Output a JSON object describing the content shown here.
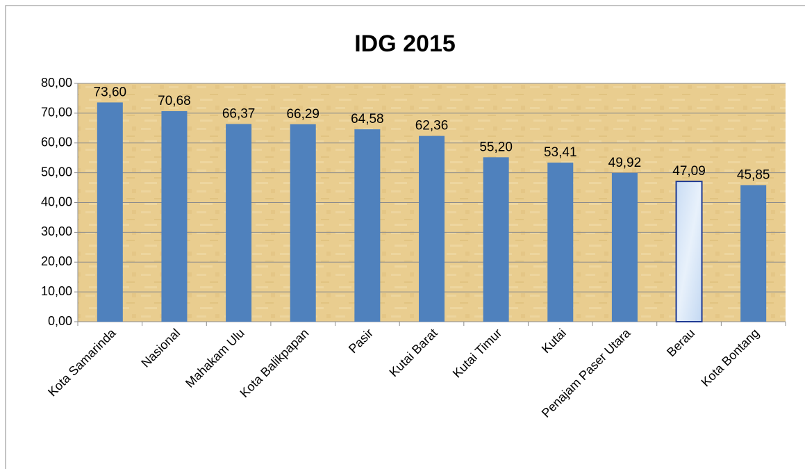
{
  "chart_data": {
    "type": "bar",
    "title": "IDG 2015",
    "categories": [
      "Kota Samarinda",
      "Nasional",
      "Mahakam Ulu",
      "Kota Balikpapan",
      "Pasir",
      "Kutai Barat",
      "Kutai Timur",
      "Kutai",
      "Penajam Paser Utara",
      "Berau",
      "Kota Bontang"
    ],
    "values": [
      73.6,
      70.68,
      66.37,
      66.29,
      64.58,
      62.36,
      55.2,
      53.41,
      49.92,
      47.09,
      45.85
    ],
    "value_labels": [
      "73,60",
      "70,68",
      "66,37",
      "66,29",
      "64,58",
      "62,36",
      "55,20",
      "53,41",
      "49,92",
      "47,09",
      "45,85"
    ],
    "colors": [
      "#4f81bd",
      "#4f81bd",
      "#4f81bd",
      "#4f81bd",
      "#4f81bd",
      "#4f81bd",
      "#4f81bd",
      "#4f81bd",
      "#4f81bd",
      "#dce9f8",
      "#4f81bd"
    ],
    "ylim": [
      0,
      80
    ],
    "yticks": [
      {
        "value": 0,
        "label": "0,00"
      },
      {
        "value": 10,
        "label": "10,00"
      },
      {
        "value": 20,
        "label": "20,00"
      },
      {
        "value": 30,
        "label": "30,00"
      },
      {
        "value": 40,
        "label": "40,00"
      },
      {
        "value": 50,
        "label": "50,00"
      },
      {
        "value": 60,
        "label": "60,00"
      },
      {
        "value": 70,
        "label": "70,00"
      },
      {
        "value": 80,
        "label": "80,00"
      }
    ],
    "grid": true
  }
}
